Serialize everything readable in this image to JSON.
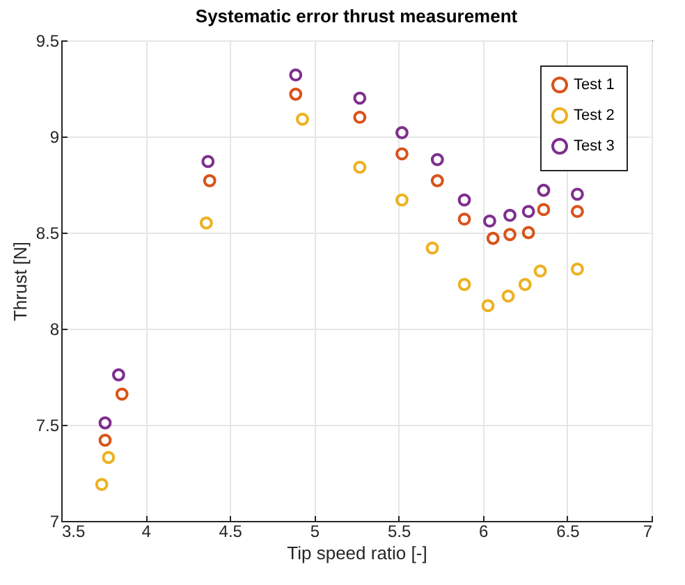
{
  "chart_data": {
    "type": "scatter",
    "title": "Systematic error thrust measurement",
    "xlabel": "Tip speed ratio [-]",
    "ylabel": "Thrust [N]",
    "xlim": [
      3.5,
      7
    ],
    "xticks": [
      3.5,
      4,
      4.5,
      5,
      5.5,
      6,
      6.5,
      7
    ],
    "ylim": [
      7,
      9.5
    ],
    "yticks": [
      7,
      7.5,
      8,
      8.5,
      9,
      9.5
    ],
    "grid": true,
    "legend": "top right",
    "marker": "circle",
    "series": [
      {
        "name": "Test 1",
        "color": "#d95319",
        "x": [
          3.76,
          3.86,
          4.38,
          4.89,
          5.27,
          5.52,
          5.73,
          5.89,
          6.06,
          6.16,
          6.27,
          6.36,
          6.56
        ],
        "values": [
          7.42,
          7.66,
          8.77,
          9.22,
          9.1,
          8.91,
          8.77,
          8.57,
          8.47,
          8.49,
          8.5,
          8.62,
          8.61
        ]
      },
      {
        "name": "Test 2",
        "color": "#edb120",
        "x": [
          3.74,
          3.78,
          4.36,
          4.93,
          5.27,
          5.52,
          5.7,
          5.89,
          6.03,
          6.15,
          6.25,
          6.34,
          6.56
        ],
        "values": [
          7.19,
          7.33,
          8.55,
          9.09,
          8.84,
          8.67,
          8.42,
          8.23,
          8.12,
          8.17,
          8.23,
          8.3,
          8.31
        ]
      },
      {
        "name": "Test 3",
        "color": "#7e2f8e",
        "x": [
          3.76,
          3.84,
          4.37,
          4.89,
          5.27,
          5.52,
          5.73,
          5.89,
          6.04,
          6.16,
          6.27,
          6.36,
          6.56
        ],
        "values": [
          7.51,
          7.76,
          8.87,
          9.32,
          9.2,
          9.02,
          8.88,
          8.67,
          8.56,
          8.59,
          8.61,
          8.72,
          8.7
        ]
      }
    ]
  }
}
